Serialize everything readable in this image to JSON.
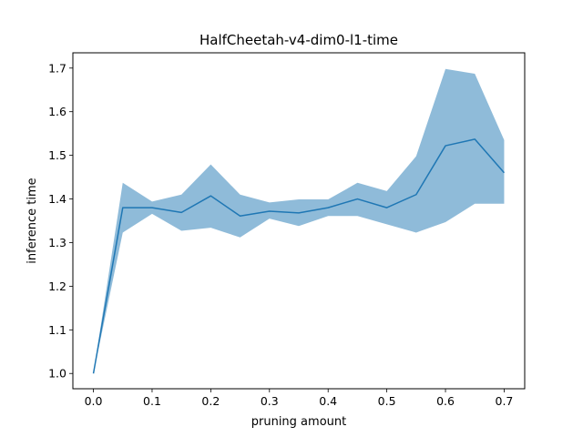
{
  "chart_data": {
    "type": "line",
    "title": "HalfCheetah-v4-dim0-l1-time",
    "xlabel": "pruning amount",
    "ylabel": "inference time",
    "xlim": [
      -0.035,
      0.735
    ],
    "ylim": [
      0.965,
      1.735
    ],
    "xticks": [
      0.0,
      0.1,
      0.2,
      0.3,
      0.4,
      0.5,
      0.6,
      0.7
    ],
    "xtick_labels": [
      "0.0",
      "0.1",
      "0.2",
      "0.3",
      "0.4",
      "0.5",
      "0.6",
      "0.7"
    ],
    "yticks": [
      1.0,
      1.1,
      1.2,
      1.3,
      1.4,
      1.5,
      1.6,
      1.7
    ],
    "ytick_labels": [
      "1.0",
      "1.1",
      "1.2",
      "1.3",
      "1.4",
      "1.5",
      "1.6",
      "1.7"
    ],
    "grid": false,
    "line_color": "#1f77b4",
    "band_color": "#1f77b4",
    "band_opacity": 0.5,
    "x": [
      0.0,
      0.05,
      0.1,
      0.15,
      0.2,
      0.25,
      0.3,
      0.35,
      0.4,
      0.45,
      0.5,
      0.55,
      0.6,
      0.65,
      0.7
    ],
    "series": [
      {
        "values": [
          1.0,
          1.38,
          1.38,
          1.369,
          1.407,
          1.361,
          1.372,
          1.368,
          1.38,
          1.4,
          1.38,
          1.41,
          1.522,
          1.537,
          1.46
        ],
        "lower": [
          1.0,
          1.323,
          1.366,
          1.327,
          1.334,
          1.312,
          1.355,
          1.338,
          1.361,
          1.361,
          1.342,
          1.323,
          1.347,
          1.389,
          1.389
        ],
        "upper": [
          1.0,
          1.437,
          1.394,
          1.41,
          1.479,
          1.41,
          1.392,
          1.399,
          1.399,
          1.437,
          1.418,
          1.498,
          1.698,
          1.687,
          1.535
        ]
      }
    ]
  }
}
